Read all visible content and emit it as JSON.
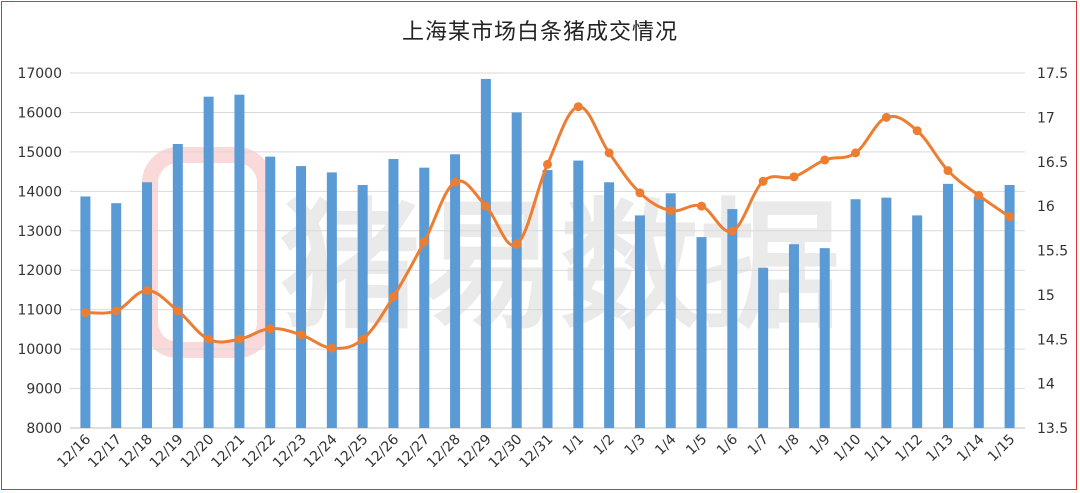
{
  "watermark": {
    "text": "猪易数据"
  },
  "chart_data": {
    "type": "bar+line",
    "title": "上海某市场白条猪成交情况",
    "categories": [
      "12/16",
      "12/17",
      "12/18",
      "12/19",
      "12/20",
      "12/21",
      "12/22",
      "12/23",
      "12/24",
      "12/25",
      "12/26",
      "12/27",
      "12/28",
      "12/29",
      "12/30",
      "12/31",
      "1/1",
      "1/2",
      "1/3",
      "1/4",
      "1/5",
      "1/6",
      "1/7",
      "1/8",
      "1/9",
      "1/10",
      "1/11",
      "1/12",
      "1/13",
      "1/14",
      "1/15"
    ],
    "series": [
      {
        "type": "bar",
        "axis": "left",
        "color": "#5b9bd5",
        "values": [
          13870,
          13700,
          14230,
          15200,
          16400,
          16450,
          14880,
          14640,
          14480,
          14160,
          14820,
          14600,
          14940,
          16850,
          16000,
          14540,
          14780,
          14230,
          13390,
          13950,
          12840,
          13550,
          12060,
          12660,
          12560,
          13800,
          13840,
          13390,
          14190,
          13860,
          14160
        ]
      },
      {
        "type": "line",
        "axis": "right",
        "color": "#ed7d31",
        "values": [
          14.8,
          14.82,
          15.05,
          14.82,
          14.5,
          14.5,
          14.62,
          14.55,
          14.4,
          14.5,
          14.98,
          15.6,
          16.27,
          16.0,
          15.57,
          16.47,
          17.12,
          16.6,
          16.15,
          15.95,
          16.0,
          15.72,
          16.28,
          16.33,
          16.52,
          16.6,
          17.0,
          16.85,
          16.4,
          16.12,
          15.88
        ]
      }
    ],
    "y_left": {
      "min": 8000,
      "max": 17000,
      "ticks": [
        "8000",
        "9000",
        "10000",
        "11000",
        "12000",
        "13000",
        "14000",
        "15000",
        "16000",
        "17000"
      ]
    },
    "y_right": {
      "min": 13.5,
      "max": 17.5,
      "ticks": [
        "13.5",
        "14",
        "14.5",
        "15",
        "15.5",
        "16",
        "16.5",
        "17",
        "17.5"
      ]
    },
    "grid": true
  }
}
